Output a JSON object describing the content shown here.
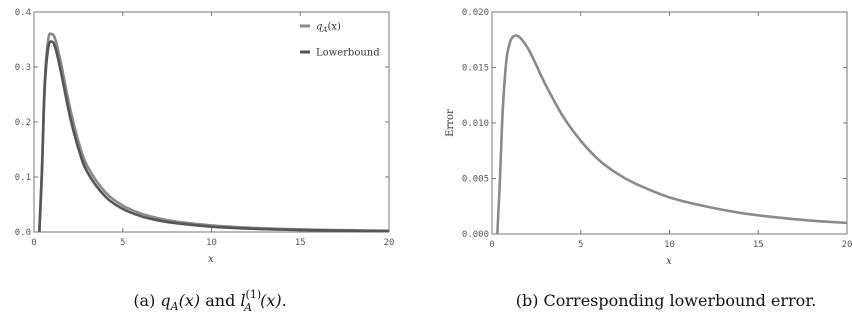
{
  "chart_data": [
    {
      "type": "line",
      "caption": {
        "prefix": "(a) ",
        "q_symbol": "q",
        "q_sub": "A",
        "q_arg": "(x)",
        "and": " and ",
        "l_symbol": "l",
        "l_sup": "(1)",
        "l_sub": "A",
        "l_arg": "(x)."
      },
      "xlabel": "x",
      "ylabel": "",
      "xlim": [
        0,
        20
      ],
      "ylim": [
        0,
        0.4
      ],
      "xticks": [
        0,
        5,
        10,
        15,
        20
      ],
      "yticks": [
        0.0,
        0.1,
        0.2,
        0.3,
        0.4
      ],
      "ytick_labels": [
        "0.0",
        "0.1",
        "0.2",
        "0.3",
        "0.4"
      ],
      "legend_position": "top-right",
      "legend": {
        "qA_prefix": "q",
        "qA_sub": "A",
        "qA_suffix": "(x)",
        "lower": "Lowerbound"
      },
      "series": [
        {
          "key": "qA",
          "color": "#8a8a8a",
          "x": [
            0.3,
            0.45,
            0.6,
            0.8,
            1.0,
            1.2,
            1.5,
            2.0,
            2.5,
            3.0,
            4.0,
            5.0,
            6.0,
            7.0,
            8.0,
            10.0,
            12.0,
            14.0,
            16.0,
            18.0,
            20.0
          ],
          "y": [
            0.0,
            0.12,
            0.27,
            0.35,
            0.36,
            0.35,
            0.31,
            0.23,
            0.165,
            0.12,
            0.073,
            0.048,
            0.034,
            0.025,
            0.019,
            0.012,
            0.008,
            0.0055,
            0.004,
            0.003,
            0.0023
          ]
        },
        {
          "key": "lower",
          "color": "#555555",
          "x": [
            0.3,
            0.45,
            0.6,
            0.8,
            1.0,
            1.2,
            1.5,
            2.0,
            2.5,
            3.0,
            4.0,
            5.0,
            6.0,
            7.0,
            8.0,
            10.0,
            12.0,
            14.0,
            16.0,
            18.0,
            20.0
          ],
          "y": [
            0.0,
            0.11,
            0.26,
            0.335,
            0.346,
            0.335,
            0.294,
            0.214,
            0.152,
            0.109,
            0.065,
            0.042,
            0.029,
            0.021,
            0.016,
            0.0097,
            0.0063,
            0.0043,
            0.003,
            0.0022,
            0.0016
          ]
        }
      ]
    },
    {
      "type": "line",
      "caption": "(b) Corresponding lowerbound error.",
      "xlabel": "x",
      "ylabel": "Error",
      "xlim": [
        0,
        20
      ],
      "ylim": [
        0,
        0.02
      ],
      "xticks": [
        0,
        5,
        10,
        15,
        20
      ],
      "yticks": [
        0.0,
        0.005,
        0.01,
        0.015,
        0.02
      ],
      "ytick_labels": [
        "0.000",
        "0.005",
        "0.010",
        "0.015",
        "0.020"
      ],
      "series": [
        {
          "key": "error",
          "color": "#8a8a8a",
          "x": [
            0.3,
            0.45,
            0.6,
            0.8,
            1.0,
            1.2,
            1.5,
            2.0,
            2.5,
            3.0,
            4.0,
            5.0,
            6.0,
            7.0,
            8.0,
            10.0,
            12.0,
            14.0,
            16.0,
            18.0,
            20.0
          ],
          "y": [
            0.0,
            0.005,
            0.011,
            0.0155,
            0.0172,
            0.0178,
            0.0178,
            0.0168,
            0.0152,
            0.0135,
            0.0106,
            0.0084,
            0.0067,
            0.0055,
            0.0046,
            0.0033,
            0.0025,
            0.0019,
            0.0015,
            0.0012,
            0.001
          ]
        }
      ]
    }
  ]
}
